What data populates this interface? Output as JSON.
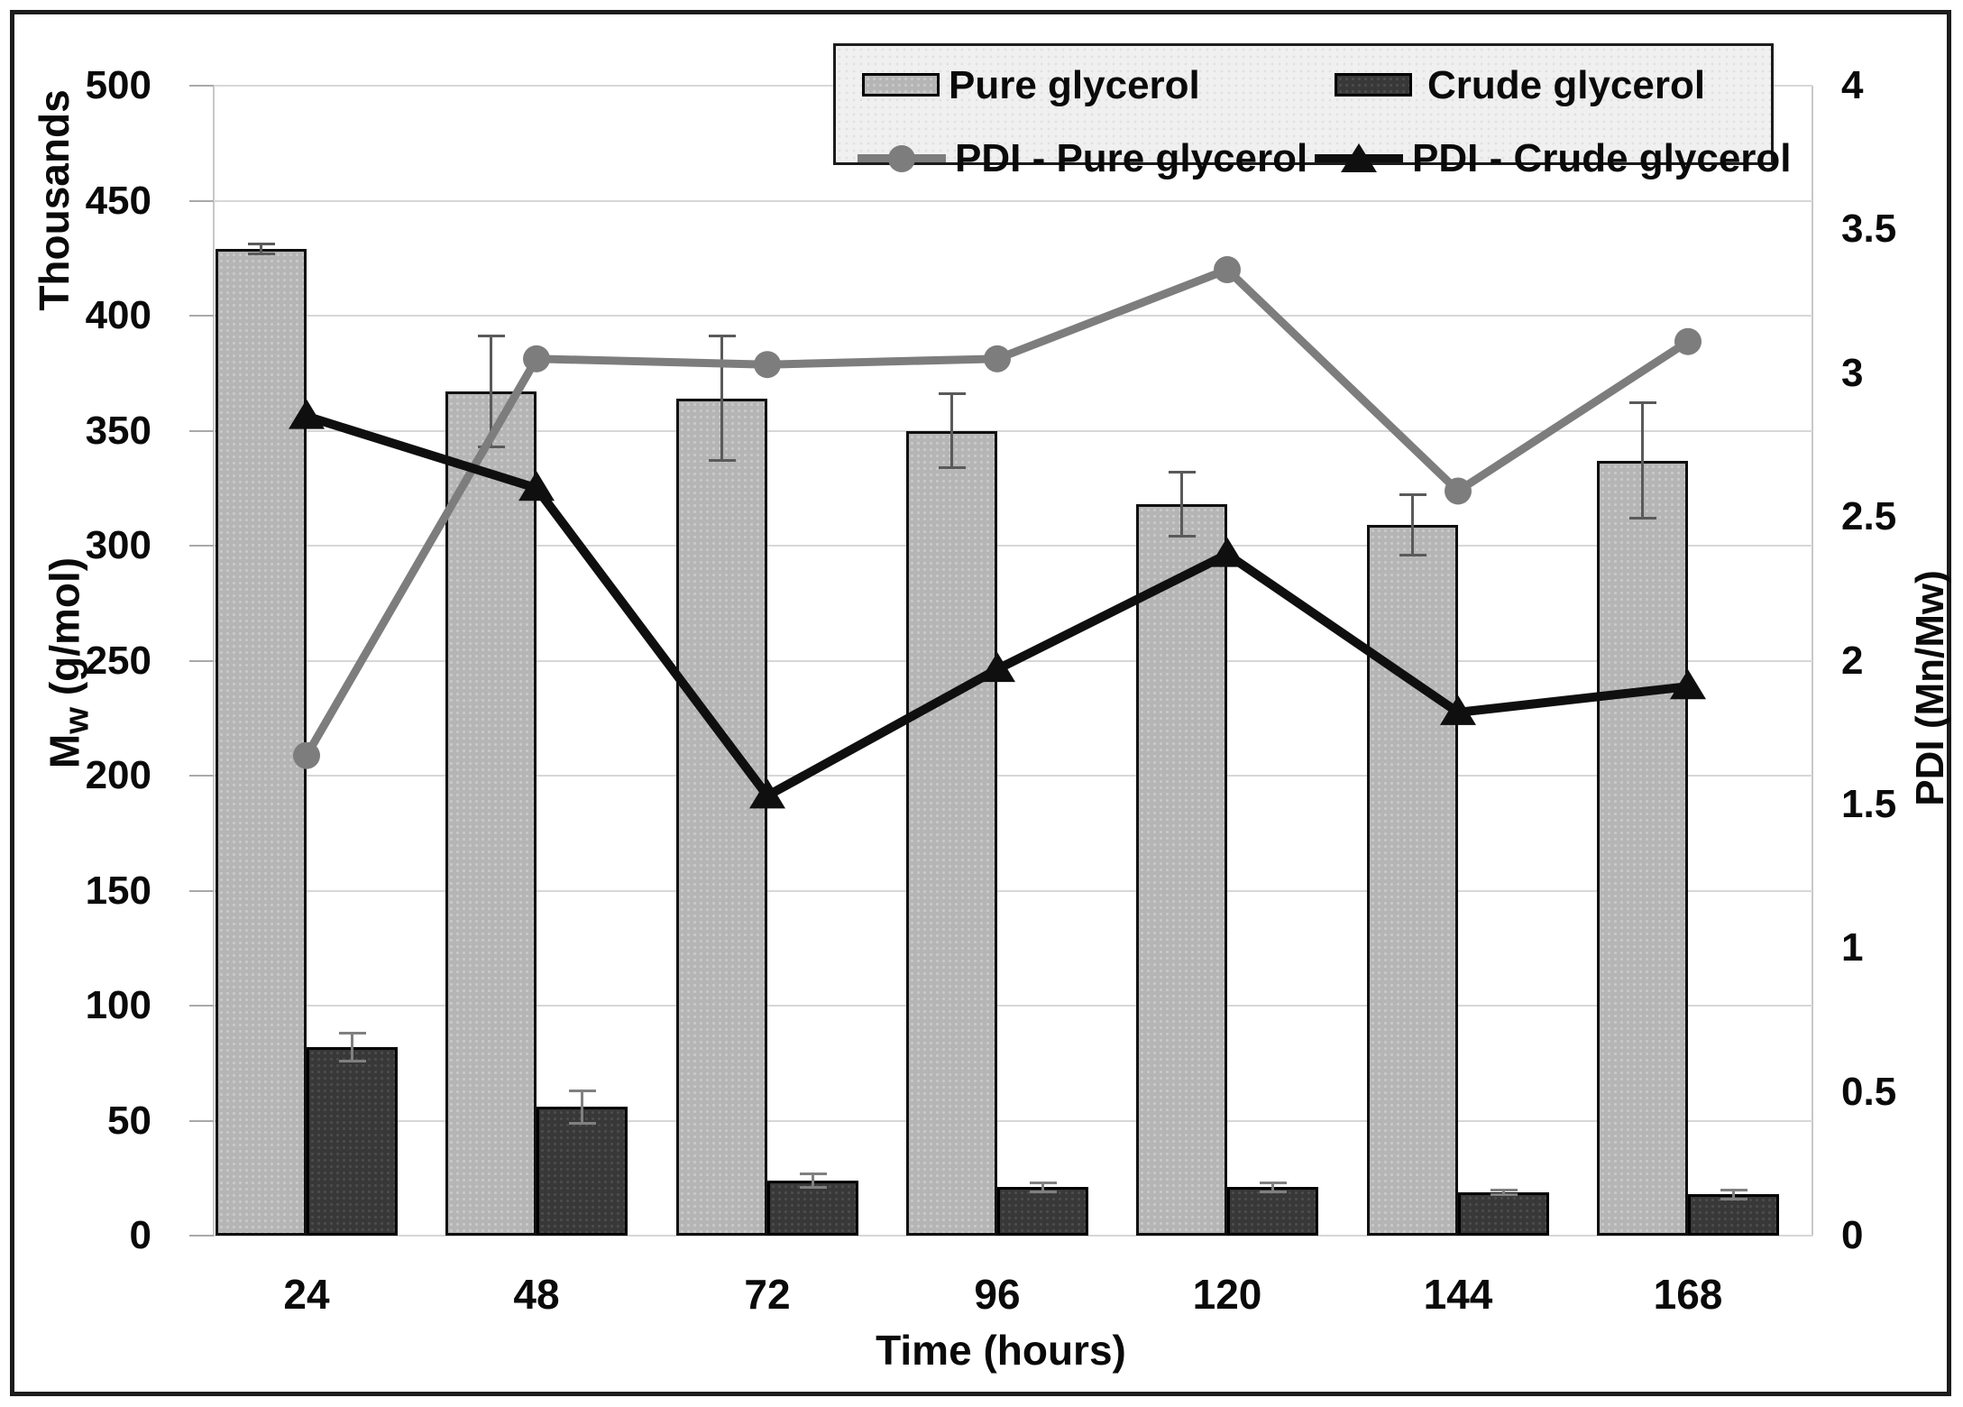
{
  "chart_data": {
    "type": "bar+line combo",
    "categories": [
      24,
      48,
      72,
      96,
      120,
      144,
      168
    ],
    "x_tick_labels": [
      "24",
      "48",
      "72",
      "96",
      "120",
      "144",
      "168"
    ],
    "xlabel": "Time (hours)",
    "left_axis": {
      "unit": "Thousands",
      "label": "Mw (g/mol)",
      "label_prefix": "M",
      "label_sub": "w",
      "label_suffix": " (g/mol)",
      "min": 0,
      "max": 500,
      "step": 50,
      "ticks": [
        "500",
        "450",
        "400",
        "350",
        "300",
        "250",
        "200",
        "150",
        "100",
        "50",
        "0"
      ]
    },
    "right_axis": {
      "label": "PDI (Mn/Mw)",
      "min": 0,
      "max": 4,
      "step": 0.5,
      "ticks": [
        "4",
        "3.5",
        "3",
        "2.5",
        "2",
        "1.5",
        "1",
        "0.5",
        "0"
      ]
    },
    "bar_series": [
      {
        "name": "Pure glycerol",
        "axis": "left",
        "values_thousands": [
          429,
          367,
          364,
          350,
          318,
          309,
          337
        ],
        "error_bars": [
          2,
          24,
          27,
          16,
          14,
          13,
          25
        ],
        "fill_color": "#b5b5b5",
        "border_color": "#101010",
        "error_color": "#5a5a5a"
      },
      {
        "name": "Crude glycerol",
        "axis": "left",
        "values_thousands": [
          82,
          56,
          24,
          21,
          21,
          19,
          18
        ],
        "error_bars": [
          6,
          7,
          3,
          2,
          2,
          1,
          2
        ],
        "fill_color": "#383838",
        "border_color": "#000000",
        "error_color": "#808080"
      }
    ],
    "line_series": [
      {
        "name": "PDI - Pure glycerol",
        "axis": "right",
        "marker": "circle",
        "values": [
          1.67,
          3.05,
          3.03,
          3.05,
          3.36,
          2.59,
          3.11
        ],
        "color": "#7d7d7d"
      },
      {
        "name": "PDI - Crude glycerol",
        "axis": "right",
        "marker": "triangle",
        "values": [
          2.85,
          2.6,
          1.53,
          1.97,
          2.37,
          1.82,
          1.91
        ],
        "color": "#0f0f0f"
      }
    ],
    "legend_position": "top",
    "grid": true,
    "style": {
      "gridline_color": "#d7d7d7",
      "axis_line_color": "#c8c8c8",
      "tick_color": "#a9a9a9",
      "legend_bg": "#f0f0f0",
      "frame_border": "#1c1c1c",
      "text_color": "#0a0a0a"
    }
  }
}
